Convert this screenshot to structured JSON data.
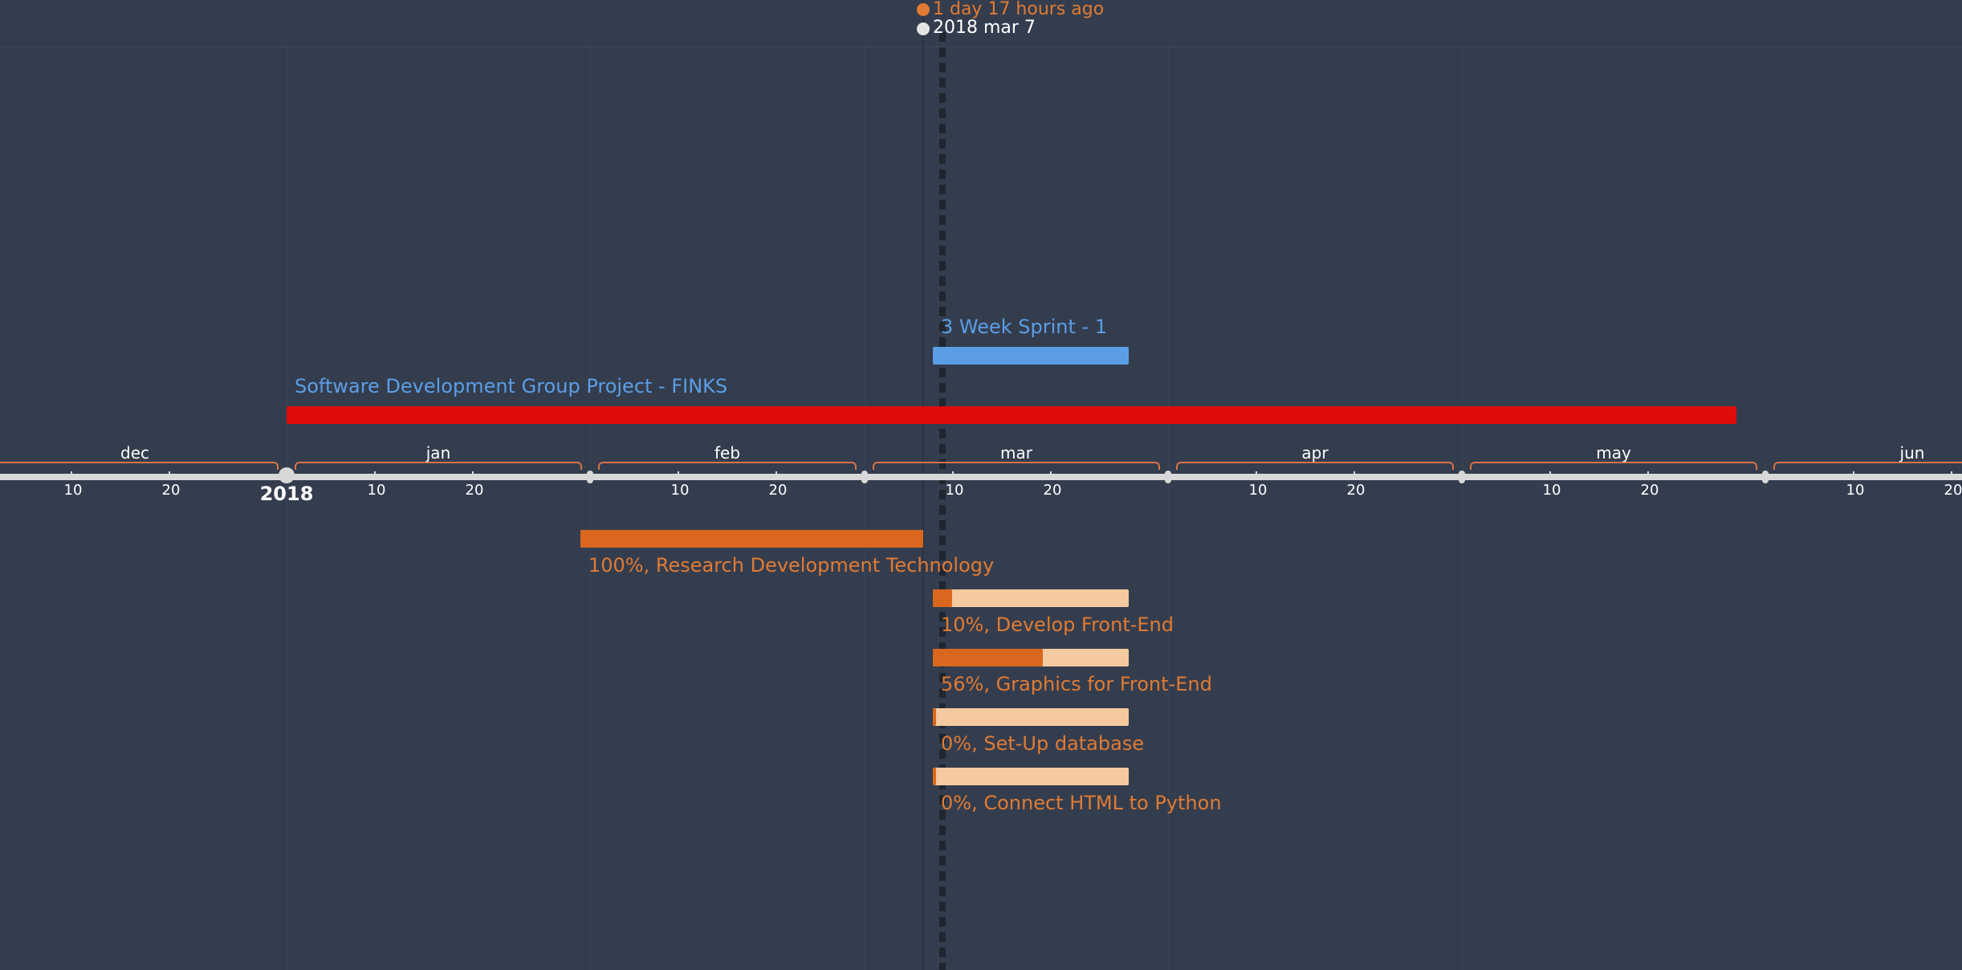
{
  "now_marker": {
    "relative_label": "1 day 17 hours ago",
    "date_label": "2018 mar 7",
    "relative_color": "#e07b33",
    "date_color": "#ffffff"
  },
  "axis": {
    "year_label": "2018",
    "months": [
      "dec",
      "jan",
      "feb",
      "mar",
      "apr",
      "may",
      "jun"
    ],
    "day_labels": [
      "10",
      "20"
    ]
  },
  "colors": {
    "project": "#e00b0b",
    "sprint": "#5b9ee6",
    "task_done": "#d9681e",
    "task_track": "#f5caa0",
    "project_label": "#5b9ee6",
    "task_label": "#e07b33"
  },
  "timeline_items": [
    {
      "label": "3 Week Sprint - 1",
      "kind": "sprint",
      "start": "2018-03-08",
      "end": "2018-03-28"
    },
    {
      "label": "Software Development Group Project - FINKS",
      "kind": "project",
      "start": "2018-01-01",
      "end": "2018-05-29"
    },
    {
      "label": "100%, Research Development Technology",
      "kind": "task",
      "start": "2018-01-31",
      "end": "2018-03-07",
      "progress": 1.0
    },
    {
      "label": "10%, Develop Front-End",
      "kind": "task",
      "start": "2018-03-08",
      "end": "2018-03-28",
      "progress": 0.1
    },
    {
      "label": "56%, Graphics for Front-End",
      "kind": "task",
      "start": "2018-03-08",
      "end": "2018-03-28",
      "progress": 0.56
    },
    {
      "label": "0%, Set-Up database",
      "kind": "task",
      "start": "2018-03-08",
      "end": "2018-03-28",
      "progress": 0.0
    },
    {
      "label": "0%, Connect HTML to Python",
      "kind": "task",
      "start": "2018-03-08",
      "end": "2018-03-28",
      "progress": 0.0
    }
  ]
}
